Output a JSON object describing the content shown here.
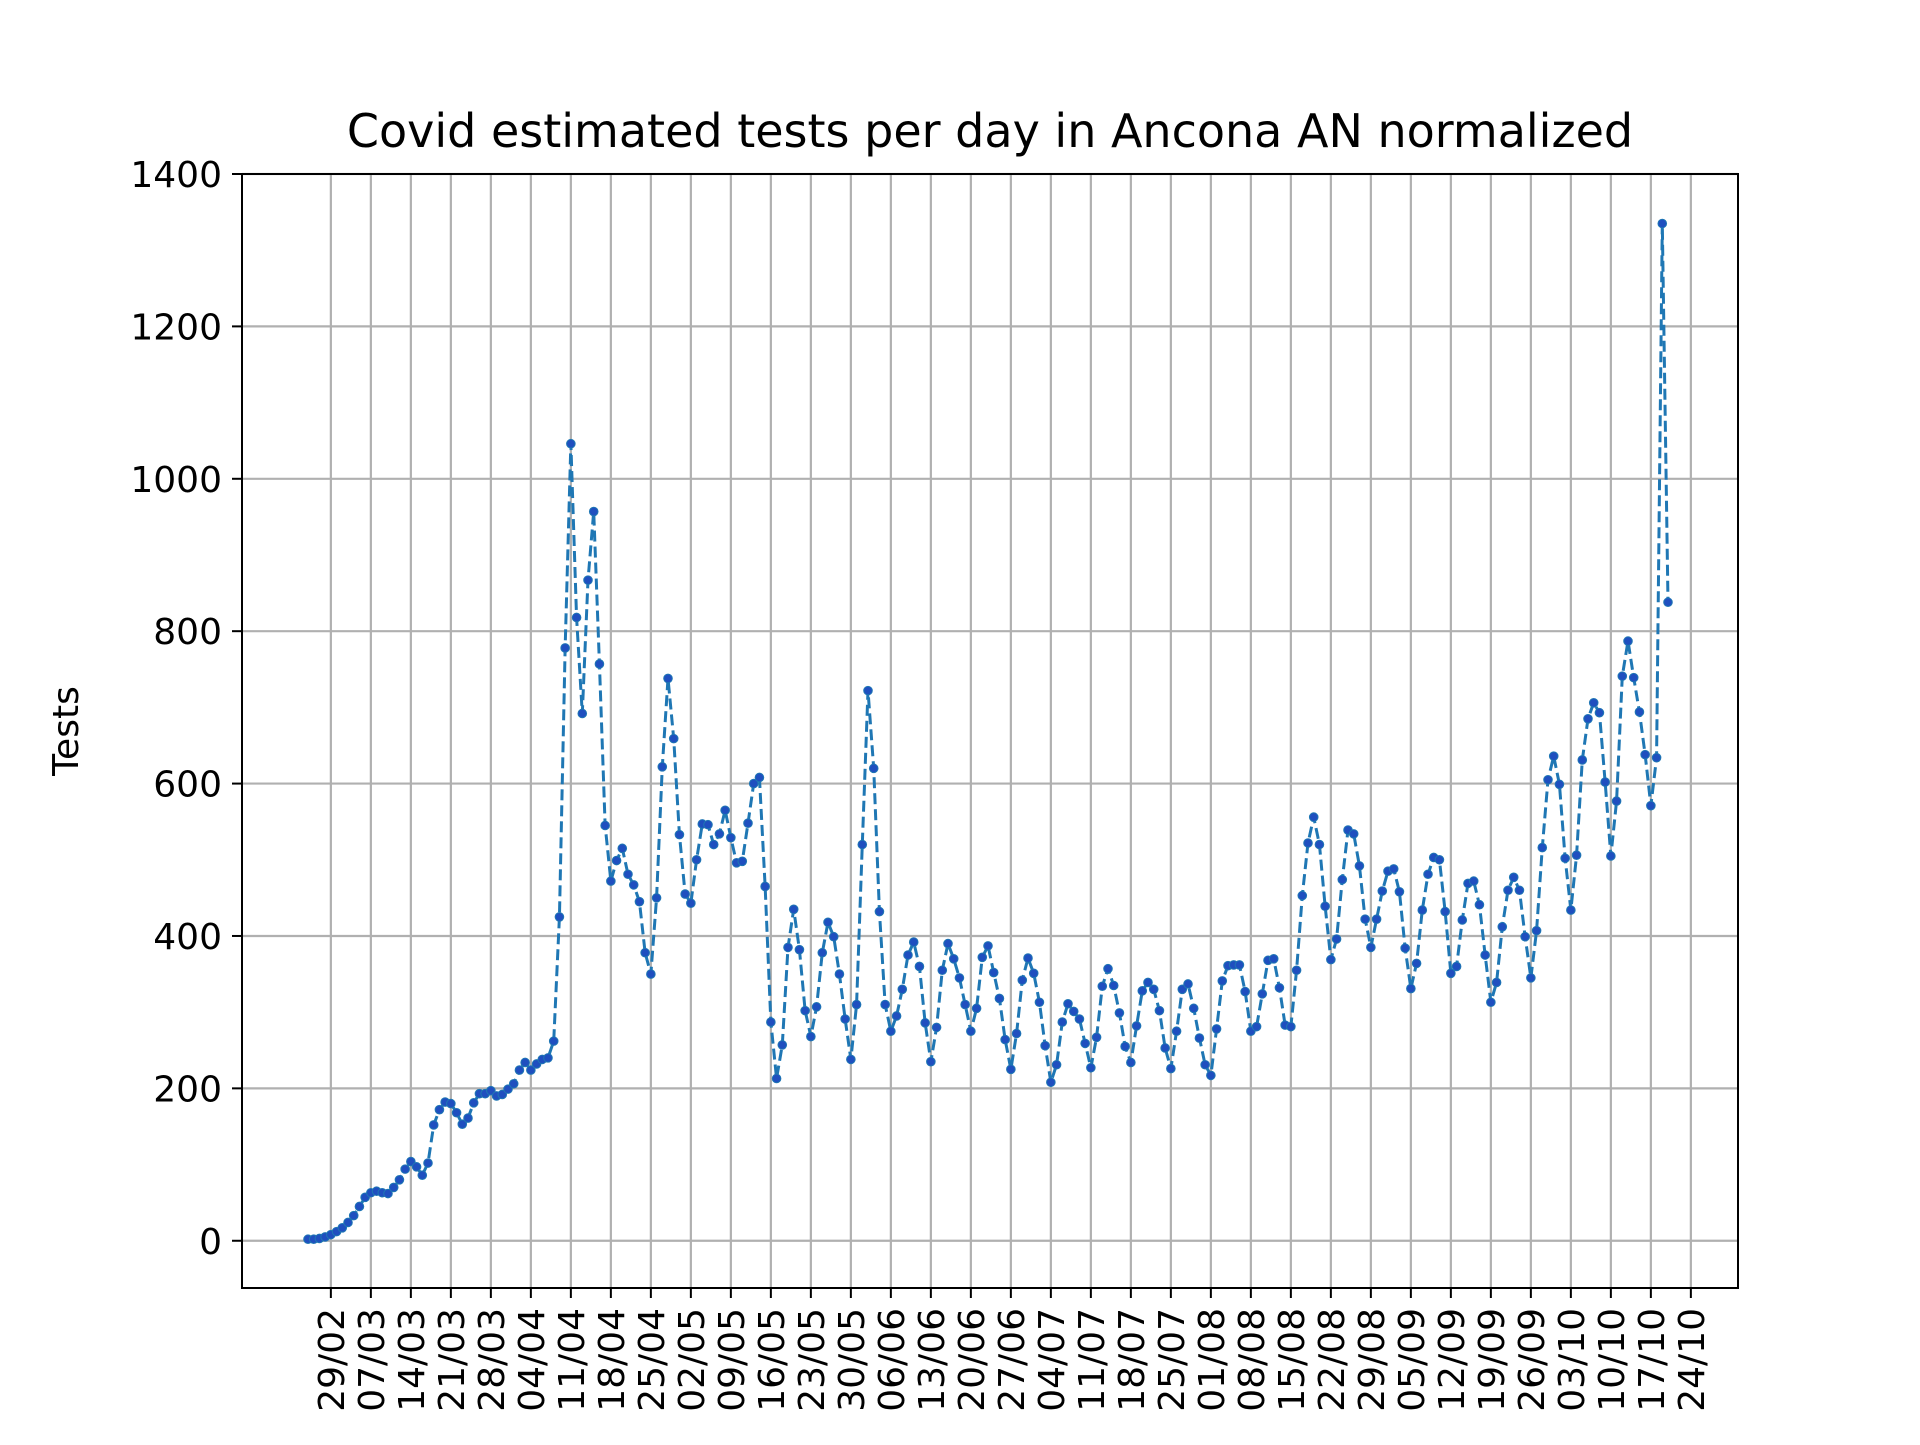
{
  "chart_data": {
    "type": "line",
    "title": "Covid estimated tests per day in Ancona AN normalized",
    "xlabel": "",
    "ylabel": "Tests",
    "ylim": [
      -62,
      1400
    ],
    "yticks": [
      0,
      200,
      400,
      600,
      800,
      1000,
      1200,
      1400
    ],
    "grid": true,
    "colors": {
      "line": "#1f77b4",
      "marker": "#1f4fbf",
      "grid": "#b0b0b0"
    },
    "x_start": "25/02",
    "xtick_labels": [
      "29/02",
      "07/03",
      "14/03",
      "21/03",
      "28/03",
      "04/04",
      "11/04",
      "18/04",
      "25/04",
      "02/05",
      "09/05",
      "16/05",
      "23/05",
      "30/05",
      "06/06",
      "13/06",
      "20/06",
      "27/06",
      "04/07",
      "11/07",
      "18/07",
      "25/07",
      "01/08",
      "08/08",
      "15/08",
      "22/08",
      "29/08",
      "05/09",
      "12/09",
      "19/09",
      "26/09",
      "03/10",
      "10/10",
      "17/10",
      "24/10"
    ],
    "series": [
      {
        "name": "",
        "values": [
          2,
          2,
          3,
          5,
          8,
          12,
          17,
          24,
          33,
          45,
          57,
          63,
          65,
          63,
          62,
          70,
          80,
          94,
          104,
          97,
          86,
          102,
          152,
          172,
          182,
          180,
          168,
          153,
          161,
          181,
          193,
          193,
          197,
          190,
          192,
          199,
          206,
          224,
          234,
          224,
          232,
          238,
          240,
          262,
          425,
          778,
          1046,
          818,
          692,
          867,
          957,
          757,
          545,
          472,
          499,
          515,
          481,
          467,
          445,
          378,
          350,
          450,
          622,
          738,
          659,
          533,
          455,
          443,
          500,
          547,
          546,
          520,
          534,
          565,
          529,
          496,
          498,
          548,
          600,
          608,
          465,
          287,
          213,
          257,
          385,
          435,
          382,
          302,
          268,
          307,
          378,
          418,
          399,
          350,
          291,
          238,
          310,
          520,
          722,
          620,
          432,
          310,
          275,
          295,
          330,
          375,
          392,
          360,
          286,
          235,
          280,
          355,
          390,
          370,
          345,
          310,
          275,
          305,
          372,
          387,
          352,
          318,
          264,
          225,
          272,
          342,
          371,
          351,
          313,
          256,
          208,
          231,
          287,
          311,
          301,
          291,
          259,
          227,
          267,
          334,
          357,
          335,
          299,
          255,
          234,
          282,
          328,
          339,
          330,
          302,
          253,
          226,
          275,
          330,
          337,
          305,
          266,
          231,
          217,
          278,
          341,
          361,
          362,
          362,
          327,
          275,
          281,
          324,
          368,
          370,
          332,
          283,
          281,
          355,
          453,
          522,
          556,
          520,
          439,
          369,
          396,
          474,
          539,
          534,
          492,
          422,
          385,
          422,
          459,
          485,
          488,
          458,
          384,
          331,
          364,
          434,
          481,
          503,
          500,
          432,
          351,
          360,
          421,
          469,
          472,
          441,
          375,
          313,
          339,
          412,
          460,
          477,
          460,
          399,
          345,
          407,
          516,
          605,
          636,
          599,
          502,
          434,
          506,
          631,
          685,
          706,
          693,
          602,
          505,
          577,
          741,
          787,
          739,
          694,
          638,
          571,
          634,
          1335,
          838
        ]
      }
    ]
  }
}
